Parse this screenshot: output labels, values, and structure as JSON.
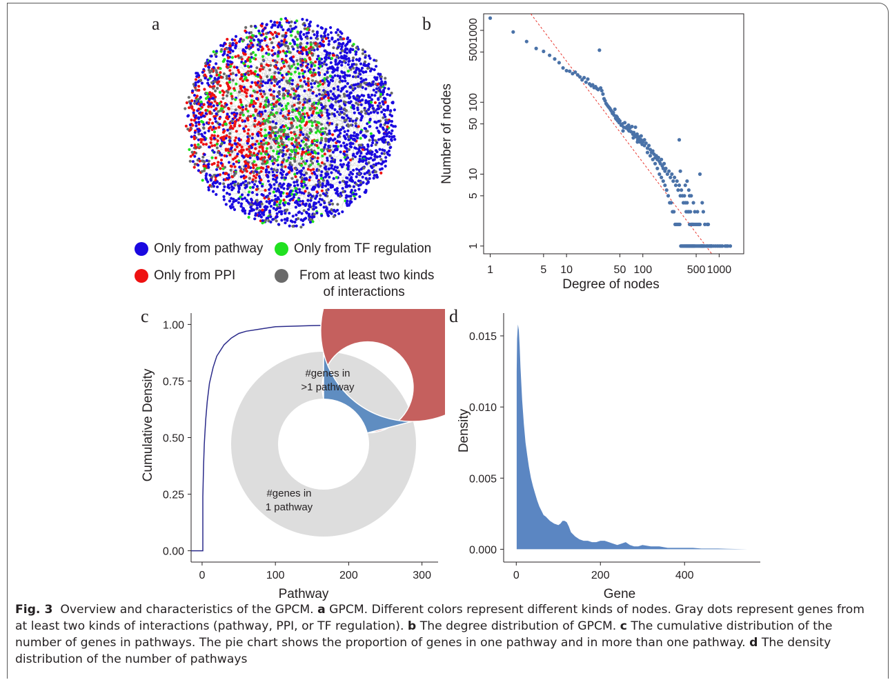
{
  "panel_labels": {
    "a": "a",
    "b": "b",
    "c": "c",
    "d": "d"
  },
  "network": {
    "title": "",
    "legend": [
      {
        "label": "Only from pathway",
        "color": "#1a08e0"
      },
      {
        "label": "Only from TF regulation",
        "color": "#20e020"
      },
      {
        "label": "Only from PPI",
        "color": "#ee1111"
      },
      {
        "label": "From at least two kinds of interactions",
        "label_line1": "From at least two kinds",
        "label_line2": "of interactions",
        "color": "#6a6a6a"
      }
    ]
  },
  "chart_data": [
    {
      "panel": "b",
      "type": "scatter",
      "title": "",
      "xlabel": "Degree of nodes",
      "ylabel": "Number of nodes",
      "x_scale": "log",
      "y_scale": "log",
      "xlim": [
        0.82,
        2100
      ],
      "ylim": [
        0.78,
        1700
      ],
      "x_ticks": [
        1,
        5,
        10,
        50,
        100,
        500,
        1000
      ],
      "x_tick_labels": [
        "1",
        "5",
        "10",
        "50",
        "100",
        "500",
        "1000"
      ],
      "y_ticks": [
        1,
        5,
        10,
        50,
        100,
        500,
        1000
      ],
      "y_tick_labels": [
        "1",
        "5",
        "10",
        "50",
        "100",
        "500",
        "1000"
      ],
      "point_color": "#4a72a8",
      "fit_line": {
        "color": "#e8332b",
        "style": "dashed",
        "points": [
          [
            3.4,
            1700
          ],
          [
            800,
            0.78
          ]
        ]
      },
      "points": [
        [
          1,
          1480
        ],
        [
          2,
          950
        ],
        [
          3,
          700
        ],
        [
          4,
          560
        ],
        [
          5,
          510
        ],
        [
          6,
          450
        ],
        [
          7,
          400
        ],
        [
          8,
          355
        ],
        [
          9,
          300
        ],
        [
          10,
          275
        ],
        [
          11,
          270
        ],
        [
          12,
          250
        ],
        [
          13,
          262
        ],
        [
          14,
          240
        ],
        [
          15,
          225
        ],
        [
          16,
          205
        ],
        [
          17,
          220
        ],
        [
          18,
          190
        ],
        [
          19,
          210
        ],
        [
          20,
          180
        ],
        [
          21,
          170
        ],
        [
          22,
          175
        ],
        [
          23,
          160
        ],
        [
          24,
          165
        ],
        [
          25,
          155
        ],
        [
          26,
          150
        ],
        [
          27,
          530
        ],
        [
          28,
          158
        ],
        [
          29,
          145
        ],
        [
          30,
          130
        ],
        [
          31,
          112
        ],
        [
          32,
          105
        ],
        [
          33,
          96
        ],
        [
          34,
          92
        ],
        [
          35,
          88
        ],
        [
          36,
          85
        ],
        [
          37,
          82
        ],
        [
          38,
          78
        ],
        [
          39,
          75
        ],
        [
          40,
          70
        ],
        [
          41,
          72
        ],
        [
          42,
          66
        ],
        [
          43,
          80
        ],
        [
          44,
          60
        ],
        [
          45,
          64
        ],
        [
          46,
          62
        ],
        [
          47,
          55
        ],
        [
          48,
          58
        ],
        [
          49,
          52
        ],
        [
          50,
          55
        ],
        [
          52,
          48
        ],
        [
          54,
          50
        ],
        [
          56,
          45
        ],
        [
          58,
          52
        ],
        [
          60,
          44
        ],
        [
          62,
          46
        ],
        [
          64,
          42
        ],
        [
          66,
          40
        ],
        [
          68,
          44
        ],
        [
          70,
          39
        ],
        [
          72,
          46
        ],
        [
          74,
          36
        ],
        [
          76,
          38
        ],
        [
          78,
          35
        ],
        [
          80,
          45
        ],
        [
          82,
          33
        ],
        [
          84,
          36
        ],
        [
          86,
          30
        ],
        [
          88,
          33
        ],
        [
          90,
          31
        ],
        [
          92,
          28
        ],
        [
          95,
          30
        ],
        [
          98,
          26
        ],
        [
          100,
          28
        ],
        [
          105,
          25
        ],
        [
          110,
          27
        ],
        [
          115,
          23
        ],
        [
          120,
          25
        ],
        [
          125,
          22
        ],
        [
          130,
          20
        ],
        [
          135,
          21
        ],
        [
          140,
          19
        ],
        [
          145,
          17
        ],
        [
          150,
          18
        ],
        [
          155,
          16
        ],
        [
          160,
          17
        ],
        [
          165,
          15
        ],
        [
          170,
          14
        ],
        [
          175,
          16
        ],
        [
          180,
          13
        ],
        [
          185,
          12
        ],
        [
          190,
          14
        ],
        [
          195,
          11
        ],
        [
          200,
          12
        ],
        [
          210,
          10
        ],
        [
          220,
          11
        ],
        [
          230,
          9
        ],
        [
          240,
          10
        ],
        [
          250,
          8
        ],
        [
          260,
          9
        ],
        [
          270,
          7
        ],
        [
          280,
          8
        ],
        [
          290,
          6
        ],
        [
          300,
          7
        ],
        [
          310,
          5
        ],
        [
          320,
          6
        ],
        [
          330,
          5
        ],
        [
          340,
          4
        ],
        [
          350,
          5
        ],
        [
          360,
          4
        ],
        [
          370,
          3
        ],
        [
          380,
          4
        ],
        [
          390,
          3
        ],
        [
          400,
          3
        ],
        [
          410,
          2
        ],
        [
          420,
          3
        ],
        [
          430,
          2
        ],
        [
          440,
          2
        ],
        [
          450,
          2
        ],
        [
          460,
          2
        ],
        [
          480,
          2
        ],
        [
          500,
          2
        ],
        [
          520,
          2
        ],
        [
          540,
          2
        ],
        [
          560,
          2
        ],
        [
          580,
          1
        ],
        [
          600,
          1
        ],
        [
          620,
          1
        ],
        [
          650,
          1
        ],
        [
          680,
          1
        ],
        [
          700,
          1
        ],
        [
          720,
          1
        ],
        [
          750,
          1
        ],
        [
          780,
          1
        ],
        [
          800,
          1
        ],
        [
          850,
          1
        ],
        [
          900,
          1
        ],
        [
          950,
          1
        ],
        [
          1000,
          1
        ],
        [
          1100,
          1
        ],
        [
          1200,
          1
        ],
        [
          1300,
          1
        ],
        [
          1400,
          1
        ],
        [
          45,
          58
        ],
        [
          55,
          40
        ],
        [
          65,
          48
        ],
        [
          75,
          32
        ],
        [
          85,
          28
        ],
        [
          95,
          34
        ],
        [
          105,
          30
        ],
        [
          115,
          20
        ],
        [
          125,
          18
        ],
        [
          135,
          16
        ],
        [
          145,
          14
        ],
        [
          155,
          12
        ],
        [
          165,
          10
        ],
        [
          175,
          9
        ],
        [
          185,
          8
        ],
        [
          195,
          7
        ],
        [
          205,
          6
        ],
        [
          215,
          5
        ],
        [
          225,
          4
        ],
        [
          235,
          4
        ],
        [
          245,
          3
        ],
        [
          255,
          3
        ],
        [
          265,
          2
        ],
        [
          275,
          2
        ],
        [
          285,
          2
        ],
        [
          295,
          2
        ],
        [
          305,
          2
        ],
        [
          315,
          1
        ],
        [
          325,
          1
        ],
        [
          335,
          1
        ],
        [
          345,
          1
        ],
        [
          355,
          1
        ],
        [
          365,
          1
        ],
        [
          375,
          1
        ],
        [
          385,
          1
        ],
        [
          395,
          1
        ],
        [
          405,
          1
        ],
        [
          415,
          1
        ],
        [
          425,
          1
        ],
        [
          435,
          1
        ],
        [
          445,
          1
        ],
        [
          455,
          1
        ],
        [
          465,
          1
        ],
        [
          475,
          1
        ],
        [
          490,
          1
        ],
        [
          510,
          1
        ],
        [
          530,
          1
        ],
        [
          550,
          1
        ],
        [
          570,
          1
        ],
        [
          590,
          1
        ],
        [
          610,
          1
        ],
        [
          630,
          1
        ],
        [
          300,
          30
        ],
        [
          310,
          11
        ],
        [
          360,
          7
        ],
        [
          380,
          8
        ],
        [
          400,
          6
        ],
        [
          410,
          5
        ],
        [
          430,
          5
        ],
        [
          460,
          4
        ],
        [
          480,
          3
        ],
        [
          520,
          3
        ],
        [
          560,
          10
        ],
        [
          600,
          4
        ],
        [
          620,
          3
        ],
        [
          650,
          2
        ],
        [
          700,
          2
        ],
        [
          720,
          2
        ],
        [
          760,
          1
        ],
        [
          800,
          1
        ],
        [
          1050,
          1
        ],
        [
          1250,
          1
        ]
      ]
    },
    {
      "panel": "c",
      "type": "line",
      "title": "",
      "xlabel": "Pathway",
      "ylabel": "Cumulative Density",
      "xlim": [
        -15,
        322
      ],
      "ylim": [
        -0.05,
        1.05
      ],
      "x_ticks": [
        0,
        100,
        200,
        300
      ],
      "x_tick_labels": [
        "0",
        "100",
        "200",
        "300"
      ],
      "y_ticks": [
        0,
        0.25,
        0.5,
        0.75,
        1
      ],
      "y_tick_labels": [
        "0.00",
        "0.25",
        "0.50",
        "0.75",
        "1.00"
      ],
      "line_color": "#2a2a8a",
      "x": [
        -15,
        1,
        1,
        2,
        3,
        4,
        5,
        7,
        10,
        15,
        20,
        30,
        40,
        50,
        60,
        80,
        100,
        150,
        200,
        250,
        322
      ],
      "y": [
        0,
        0,
        0.24,
        0.38,
        0.47,
        0.53,
        0.58,
        0.66,
        0.74,
        0.81,
        0.86,
        0.91,
        0.94,
        0.96,
        0.97,
        0.98,
        0.99,
        0.995,
        0.998,
        0.999,
        1.0
      ]
    },
    {
      "panel": "c-inset",
      "type": "pie",
      "title": "",
      "labels": [
        "#genes in >1 pathway",
        "#genes in 1 pathway"
      ],
      "label_lines": [
        [
          "#genes in",
          ">1 pathway"
        ],
        [
          "#genes in",
          "1 pathway"
        ]
      ],
      "values": [
        0.79,
        0.21
      ],
      "colors": [
        "#c5605e",
        "#5f8dc1"
      ],
      "donut": true
    },
    {
      "panel": "d",
      "type": "area",
      "title": "",
      "xlabel": "Gene",
      "ylabel": "Density",
      "xlim": [
        -30,
        580
      ],
      "ylim": [
        -0.0009,
        0.0166
      ],
      "x_ticks": [
        0,
        200,
        400
      ],
      "x_tick_labels": [
        "0",
        "200",
        "400"
      ],
      "y_ticks": [
        0,
        0.005,
        0.01,
        0.015
      ],
      "y_tick_labels": [
        "0.000",
        "0.005",
        "0.010",
        "0.015"
      ],
      "fill_color": "#5b86c2",
      "x": [
        1,
        2,
        4,
        6,
        8,
        10,
        14,
        18,
        22,
        26,
        30,
        35,
        40,
        45,
        50,
        55,
        60,
        65,
        70,
        80,
        90,
        100,
        105,
        110,
        115,
        120,
        125,
        130,
        140,
        150,
        160,
        170,
        180,
        190,
        200,
        210,
        220,
        230,
        240,
        250,
        260,
        270,
        280,
        290,
        300,
        320,
        340,
        360,
        380,
        400,
        420,
        440,
        460,
        480,
        500,
        520,
        550
      ],
      "y": [
        0.0125,
        0.0148,
        0.0158,
        0.0154,
        0.0143,
        0.0128,
        0.0105,
        0.0088,
        0.0075,
        0.0066,
        0.0058,
        0.005,
        0.0044,
        0.0039,
        0.0034,
        0.003,
        0.0027,
        0.0024,
        0.0023,
        0.002,
        0.0018,
        0.0017,
        0.0018,
        0.002,
        0.002,
        0.0019,
        0.0016,
        0.0012,
        0.0009,
        0.0007,
        0.0006,
        0.0006,
        0.0005,
        0.0005,
        0.0006,
        0.0006,
        0.0005,
        0.0004,
        0.0003,
        0.0004,
        0.0005,
        0.0003,
        0.0002,
        0.0002,
        0.0003,
        0.0002,
        0.0002,
        0.0001,
        0.0001,
        0.0001,
        0.0001,
        5e-05,
        5e-05,
        5e-05,
        3e-05,
        2e-05,
        0.0
      ]
    }
  ],
  "caption": {
    "fig_label": "Fig. 3",
    "text1": "  Overview and characteristics of the GPCM. ",
    "a": "a",
    "text_a": " GPCM. Different colors represent different kinds of nodes. Gray dots represent genes from at least two kinds of interactions (pathway, PPI, or TF regulation). ",
    "b": "b",
    "text_b": " The degree distribution of GPCM. ",
    "c": "c",
    "text_c": " The cumulative distribution of the number of genes in pathways. The pie chart shows the proportion of genes in one pathway and in more than one pathway. ",
    "d": "d",
    "text_d": " The density distribution of the number of pathways"
  }
}
